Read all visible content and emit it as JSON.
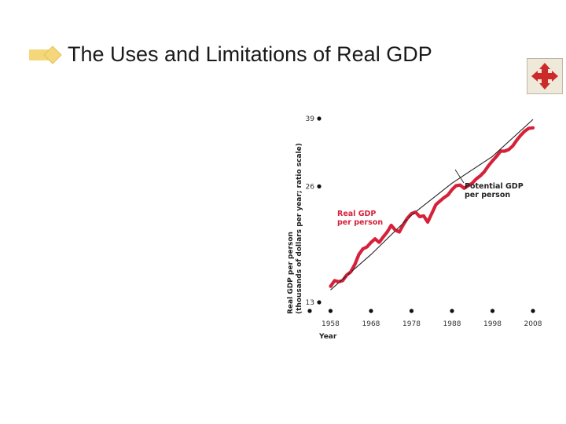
{
  "slide": {
    "title": "The Uses and Limitations of Real GDP",
    "bullet_icon": "diamond-bullet-icon",
    "nav_icon": "four-way-arrows-icon",
    "colors": {
      "bullet": "#f3d77a",
      "nav_arrows": "#cc2b2b",
      "nav_bg": "#efe9d9"
    }
  },
  "chart_data": {
    "type": "line",
    "scale": "log",
    "xlabel": "Year",
    "ylabel": [
      "Real GDP per person",
      "(thousands of dollars per year; ratio scale)"
    ],
    "x_ticks": [
      1958,
      1968,
      1978,
      1988,
      1998,
      2008
    ],
    "y_ticks": [
      13,
      26,
      39
    ],
    "xlim": [
      1955,
      2008
    ],
    "ylim": [
      13,
      39
    ],
    "grid": false,
    "colors": {
      "real": "#d6213a",
      "potential": "#222222"
    },
    "annotations": [
      {
        "id": "potential",
        "lines": [
          "Potential GDP",
          "per person"
        ]
      },
      {
        "id": "real",
        "lines": [
          "Real GDP",
          "per person"
        ]
      }
    ],
    "series": [
      {
        "id": "potential",
        "x": [
          1958,
          1968,
          1978,
          1988,
          1998,
          2008
        ],
        "y": [
          14.0,
          17.3,
          21.9,
          26.5,
          31.1,
          38.8
        ]
      },
      {
        "id": "real",
        "x": [
          1958,
          1959,
          1960,
          1961,
          1962,
          1963,
          1964,
          1965,
          1966,
          1967,
          1968,
          1969,
          1970,
          1971,
          1972,
          1973,
          1974,
          1975,
          1976,
          1977,
          1978,
          1979,
          1980,
          1981,
          1982,
          1983,
          1984,
          1985,
          1986,
          1987,
          1988,
          1989,
          1990,
          1991,
          1992,
          1993,
          1994,
          1995,
          1996,
          1997,
          1998,
          1999,
          2000,
          2001,
          2002,
          2003,
          2004,
          2005,
          2006,
          2007,
          2008
        ],
        "y": [
          14.3,
          14.8,
          14.7,
          14.8,
          15.3,
          15.6,
          16.3,
          17.3,
          17.9,
          18.1,
          18.6,
          19.0,
          18.6,
          19.2,
          19.8,
          20.6,
          20.0,
          19.8,
          20.7,
          21.5,
          22.1,
          22.3,
          21.7,
          21.8,
          21.0,
          22.1,
          23.3,
          23.8,
          24.3,
          24.7,
          25.5,
          26.1,
          26.2,
          25.7,
          26.1,
          26.5,
          27.2,
          27.7,
          28.4,
          29.4,
          30.3,
          31.1,
          32.1,
          32.1,
          32.4,
          33.1,
          34.3,
          35.3,
          36.2,
          36.8,
          36.9
        ]
      }
    ]
  }
}
